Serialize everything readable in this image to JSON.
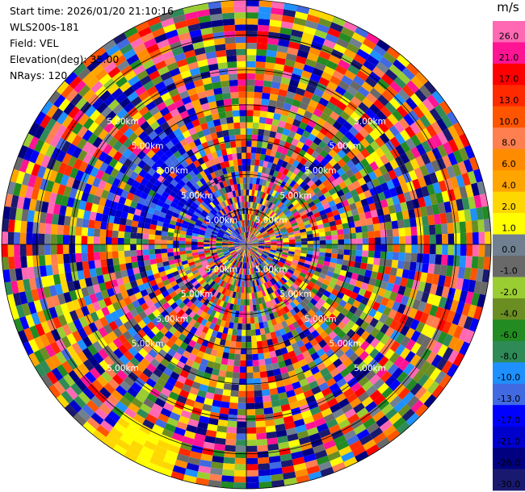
{
  "header": {
    "start_time": "Start time: 2026/01/20 21:10:16",
    "instrument": "WLS200s-181",
    "field": "Field: VEL",
    "elevation": "Elevation(deg): 35.00",
    "nrays": "NRays: 120"
  },
  "chart_data": {
    "type": "heatmap",
    "projection": "polar-ppi",
    "n_rays": 120,
    "range_ring_label": "5.00km",
    "range_ring_count": 7,
    "grid": true,
    "field": "VEL",
    "colorbar": {
      "unit": "m/s",
      "ticks": [
        "26.0",
        "21.0",
        "17.0",
        "13.0",
        "10.0",
        "8.0",
        "6.0",
        "4.0",
        "2.0",
        "1.0",
        "0.0",
        "-1.0",
        "-2.0",
        "-4.0",
        "-6.0",
        "-8.0",
        "-10.0",
        "-13.0",
        "-17.0",
        "-21.0",
        "-26.0",
        "-30.0"
      ],
      "colors": [
        "#ff69b4",
        "#ff1493",
        "#ff0000",
        "#ff2a00",
        "#ff5500",
        "#ff7f50",
        "#ff8c00",
        "#ffa500",
        "#ffd700",
        "#ffff00",
        "#708090",
        "#696969",
        "#9acd32",
        "#6b8e23",
        "#228b22",
        "#2e8b57",
        "#1e90ff",
        "#4169e1",
        "#0000ff",
        "#0000cd",
        "#000080",
        "#191970"
      ]
    }
  }
}
